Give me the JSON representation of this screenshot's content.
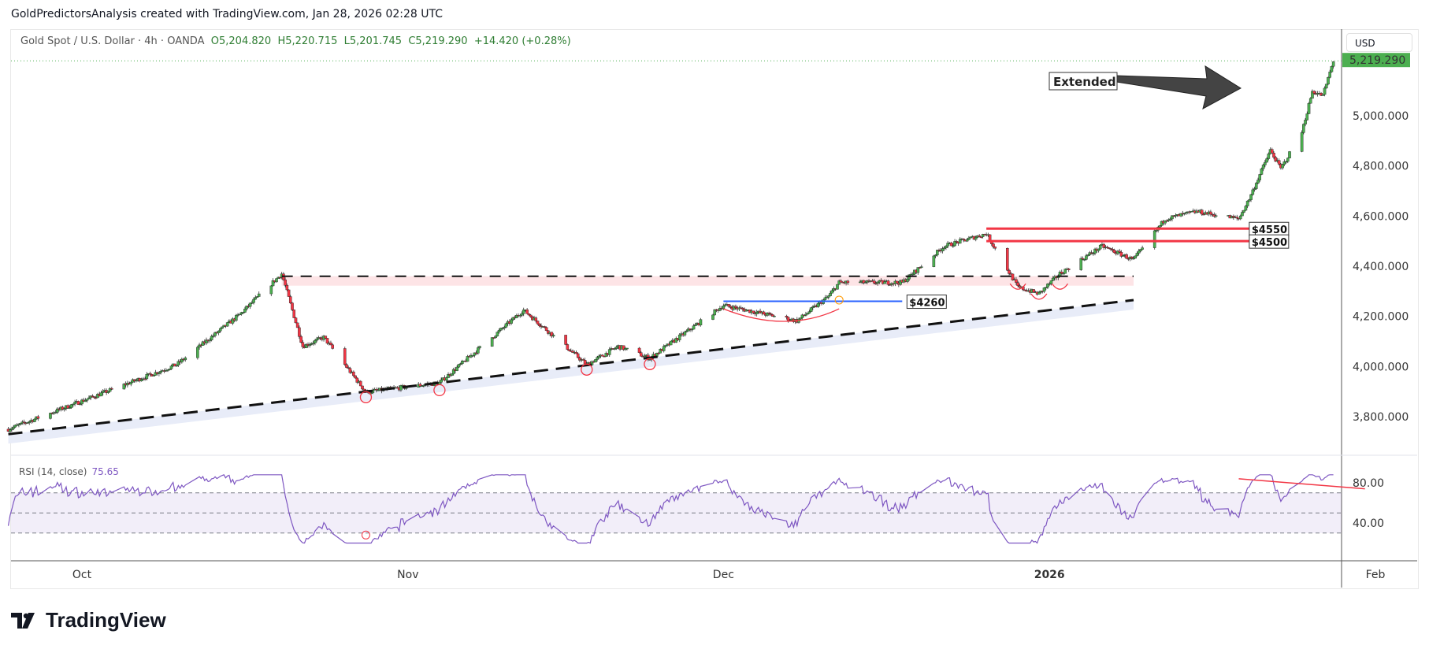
{
  "credit": "GoldPredictorsAnalysis created with TradingView.com, Jan 28, 2026 02:28 UTC",
  "legend": {
    "symbol": "Gold Spot / U.S. Dollar · 4h · OANDA",
    "open": "O5,204.820",
    "high": "H5,220.715",
    "low": "L5,201.745",
    "close": "C5,219.290",
    "change": "+14.420 (+0.28%)"
  },
  "currency": "USD",
  "last_price_label": "5,219.290",
  "rsi": {
    "label": "RSI (14, close)",
    "value": "75.65",
    "levels": [
      70,
      50,
      30
    ],
    "axis_ticks": [
      "80.00",
      "40.00"
    ]
  },
  "logo_text": "TradingView",
  "annotations": {
    "extended": "Extended",
    "level_4260": "$4260",
    "level_4550": "$4550",
    "level_4500": "$4500"
  },
  "colors": {
    "up": "#4caf50",
    "down": "#f23645",
    "rsi": "#7e57c2",
    "last_price": "#4caf50"
  },
  "chart_data": {
    "type": "candlestick",
    "title": "Gold Spot / U.S. Dollar · 4h · OANDA",
    "x_ticks": [
      "Oct",
      "Nov",
      "Dec",
      "2026",
      "Feb"
    ],
    "y_ticks": [
      "3,800.000",
      "4,000.000",
      "4,200.000",
      "4,400.000",
      "4,600.000",
      "4,800.000",
      "5,000.000"
    ],
    "ylim": [
      3700,
      5260
    ],
    "close_path": [
      [
        "2025-09-24",
        3750
      ],
      [
        "2025-10-01",
        3862
      ],
      [
        "2025-10-10",
        4007
      ],
      [
        "2025-10-16",
        4207
      ],
      [
        "2025-10-20",
        4370
      ],
      [
        "2025-10-22",
        4080
      ],
      [
        "2025-10-24",
        4116
      ],
      [
        "2025-10-28",
        3898
      ],
      [
        "2025-11-04",
        3935
      ],
      [
        "2025-11-12",
        4225
      ],
      [
        "2025-11-18",
        4007
      ],
      [
        "2025-11-21",
        4080
      ],
      [
        "2025-11-24",
        4033
      ],
      [
        "2025-12-01",
        4244
      ],
      [
        "2025-12-08",
        4182
      ],
      [
        "2025-12-11",
        4280
      ],
      [
        "2025-12-12",
        4335
      ],
      [
        "2025-12-18",
        4335
      ],
      [
        "2025-12-22",
        4480
      ],
      [
        "2025-12-26",
        4530
      ],
      [
        "2025-12-29",
        4316
      ],
      [
        "2025-12-31",
        4290
      ],
      [
        "2026-01-02",
        4371
      ],
      [
        "2026-01-06",
        4480
      ],
      [
        "2026-01-09",
        4425
      ],
      [
        "2026-01-12",
        4589
      ],
      [
        "2026-01-15",
        4618
      ],
      [
        "2026-01-19",
        4589
      ],
      [
        "2026-01-20",
        4669
      ],
      [
        "2026-01-22",
        4862
      ],
      [
        "2026-01-23",
        4789
      ],
      [
        "2026-01-25",
        4935
      ],
      [
        "2026-01-26",
        5098
      ],
      [
        "2026-01-27",
        5080
      ],
      [
        "2026-01-28",
        5219.29
      ]
    ],
    "levels": [
      {
        "label": "$4260",
        "price": 4260,
        "from": "2025-12-01",
        "to": "2025-12-18"
      },
      {
        "label": "$4550",
        "price": 4550,
        "from": "2025-12-26",
        "to": "2026-01-20"
      },
      {
        "label": "$4500",
        "price": 4500,
        "from": "2025-12-26",
        "to": "2026-01-20"
      },
      {
        "price": 4360,
        "from": "2025-10-20",
        "to": "2026-01-09"
      }
    ],
    "trendline": {
      "from": [
        "2025-09-24",
        3730
      ],
      "to": [
        "2026-01-09",
        4265
      ]
    }
  }
}
